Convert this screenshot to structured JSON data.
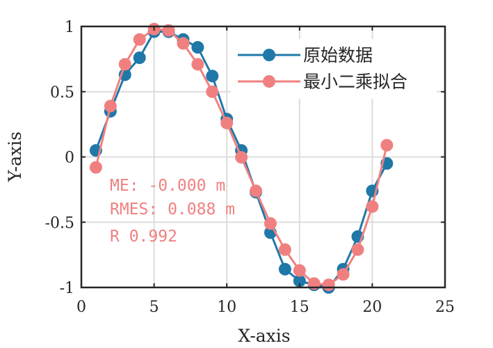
{
  "chart_data": {
    "type": "line",
    "xlabel": "X-axis",
    "ylabel": "Y-axis",
    "xlim": [
      0,
      25
    ],
    "ylim": [
      -1,
      1
    ],
    "grid": true,
    "legend_position": "top-right",
    "xticks": [
      0,
      5,
      10,
      15,
      20,
      25
    ],
    "xtick_labels": [
      "0",
      "5",
      "10",
      "15",
      "20",
      "25"
    ],
    "yticks": [
      -1,
      -0.5,
      0,
      0.5,
      1
    ],
    "ytick_labels": [
      "-1",
      "-0.5",
      "0",
      "0.5",
      "1"
    ],
    "x": [
      1,
      2,
      3,
      4,
      5,
      6,
      7,
      8,
      9,
      10,
      11,
      12,
      13,
      14,
      15,
      16,
      17,
      18,
      19,
      20,
      21
    ],
    "series": [
      {
        "name": "原始数据",
        "color": "#1f78a8",
        "values": [
          0.05,
          0.35,
          0.63,
          0.76,
          0.96,
          0.96,
          0.9,
          0.84,
          0.62,
          0.29,
          0.05,
          -0.27,
          -0.58,
          -0.86,
          -0.95,
          -0.98,
          -1.0,
          -0.86,
          -0.61,
          -0.26,
          -0.05
        ]
      },
      {
        "name": "最小二乘拟合",
        "color": "#f08080",
        "values": [
          -0.08,
          0.39,
          0.71,
          0.9,
          0.98,
          0.97,
          0.87,
          0.71,
          0.5,
          0.26,
          -0.003,
          -0.26,
          -0.51,
          -0.71,
          -0.87,
          -0.97,
          -0.98,
          -0.9,
          -0.71,
          -0.38,
          0.09
        ]
      }
    ],
    "annotations": [
      "ME: -0.000 m",
      "RMES: 0.088 m",
      "R 0.992"
    ],
    "annotation_color": "#f08080"
  }
}
